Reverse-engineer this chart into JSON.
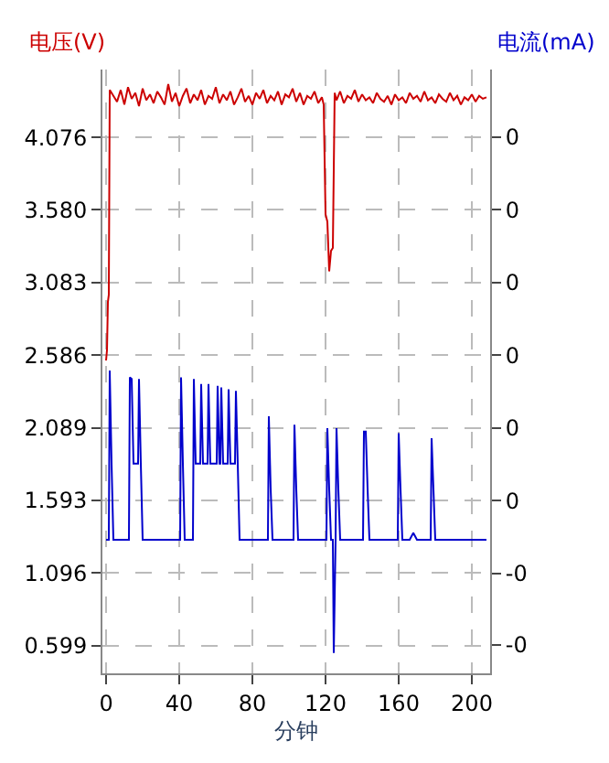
{
  "chart_data": {
    "type": "line",
    "xlabel": "分钟",
    "ylabel": "电压(V)",
    "y2label": "电流(mA)",
    "xlim": [
      -2,
      210
    ],
    "xticks": [
      0,
      40,
      80,
      120,
      160,
      200
    ],
    "ylim": [
      0.41,
      4.54
    ],
    "yticks": [
      0.599,
      1.096,
      1.593,
      2.089,
      2.586,
      3.083,
      {
        "value": 3.58,
        "label": "3.580"
      },
      4.076
    ],
    "y2lim": [
      -0.158,
      0.556
    ],
    "y2ticks": [
      {
        "value": -0.124,
        "label": "-0"
      },
      {
        "value": -0.04,
        "label": "-0"
      },
      {
        "value": 0.046,
        "label": "0"
      },
      {
        "value": 0.132,
        "label": "0"
      },
      {
        "value": 0.218,
        "label": "0"
      },
      {
        "value": 0.304,
        "label": "0"
      },
      {
        "value": 0.39,
        "label": "0"
      },
      {
        "value": 0.476,
        "label": "0"
      }
    ],
    "grid": true,
    "marker": "none",
    "line_style": "solid",
    "series": [
      {
        "color": "#cc0000",
        "x": [
          0,
          0.5,
          1,
          1.5,
          2,
          4,
          6,
          8,
          10,
          12,
          14,
          16,
          18,
          20,
          22,
          24,
          26,
          28,
          30,
          32,
          34,
          36,
          38,
          40,
          42,
          44,
          46,
          48,
          50,
          52,
          54,
          56,
          58,
          60,
          62,
          64,
          66,
          68,
          70,
          72,
          74,
          76,
          78,
          80,
          82,
          84,
          86,
          88,
          90,
          92,
          94,
          96,
          98,
          100,
          102,
          104,
          106,
          108,
          110,
          112,
          114,
          116,
          118,
          119,
          120,
          121,
          122,
          123,
          124,
          125,
          126,
          128,
          130,
          132,
          134,
          136,
          138,
          140,
          142,
          144,
          146,
          148,
          150,
          152,
          154,
          156,
          158,
          160,
          162,
          164,
          166,
          168,
          170,
          172,
          174,
          176,
          178,
          180,
          182,
          184,
          186,
          188,
          190,
          192,
          194,
          196,
          198,
          200,
          202,
          204,
          206,
          208
        ],
        "values": [
          2.55,
          2.62,
          2.95,
          3.0,
          4.4,
          4.36,
          4.32,
          4.4,
          4.3,
          4.42,
          4.34,
          4.38,
          4.29,
          4.41,
          4.33,
          4.37,
          4.31,
          4.39,
          4.35,
          4.3,
          4.44,
          4.32,
          4.38,
          4.29,
          4.36,
          4.41,
          4.31,
          4.37,
          4.33,
          4.4,
          4.3,
          4.36,
          4.34,
          4.42,
          4.31,
          4.37,
          4.33,
          4.39,
          4.3,
          4.35,
          4.41,
          4.32,
          4.36,
          4.3,
          4.38,
          4.34,
          4.4,
          4.31,
          4.36,
          4.33,
          4.39,
          4.3,
          4.37,
          4.35,
          4.41,
          4.32,
          4.38,
          4.3,
          4.36,
          4.34,
          4.39,
          4.31,
          4.35,
          4.3,
          3.55,
          3.5,
          3.16,
          3.3,
          3.32,
          4.38,
          4.33,
          4.39,
          4.31,
          4.36,
          4.34,
          4.4,
          4.32,
          4.37,
          4.33,
          4.35,
          4.31,
          4.38,
          4.34,
          4.32,
          4.36,
          4.3,
          4.37,
          4.33,
          4.35,
          4.31,
          4.38,
          4.34,
          4.36,
          4.32,
          4.39,
          4.33,
          4.35,
          4.31,
          4.37,
          4.34,
          4.32,
          4.38,
          4.33,
          4.36,
          4.3,
          4.35,
          4.33,
          4.37,
          4.32,
          4.36,
          4.34,
          4.35
        ]
      },
      {
        "color": "#0000cc",
        "axis": "y2",
        "x": [
          0,
          1.5,
          2,
          3,
          4,
          12.5,
          13,
          14,
          15,
          17.5,
          18,
          19,
          20,
          40.5,
          41,
          42,
          43,
          47.5,
          48,
          49,
          51.5,
          52,
          53,
          55.5,
          56,
          57,
          60.5,
          61,
          62,
          62.5,
          63,
          64,
          66.5,
          67,
          68,
          70.5,
          71,
          72,
          73,
          88.5,
          89,
          90,
          91,
          102.5,
          103,
          104,
          105,
          120.5,
          121,
          122,
          123,
          124,
          124.5,
          125.5,
          126,
          127,
          128,
          140.5,
          141,
          142,
          143,
          144,
          159.5,
          160,
          161,
          162,
          166,
          168,
          170,
          177.5,
          178,
          179,
          180,
          208
        ],
        "values": [
          0,
          0,
          0.2,
          0.09,
          0,
          0,
          0.192,
          0.19,
          0.09,
          0.09,
          0.19,
          0.09,
          0,
          0,
          0.192,
          0.09,
          0,
          0,
          0.19,
          0.09,
          0.09,
          0.184,
          0.09,
          0.09,
          0.184,
          0.09,
          0.09,
          0.182,
          0.09,
          0.09,
          0.18,
          0.09,
          0.09,
          0.178,
          0.09,
          0.09,
          0.176,
          0.09,
          0,
          0,
          0.146,
          0.06,
          0,
          0,
          0.136,
          0.06,
          0,
          0,
          0.132,
          0.06,
          0,
          0,
          -0.134,
          0,
          0.132,
          0.06,
          0,
          0,
          0.128,
          0.128,
          0.06,
          0,
          0,
          0.126,
          0.06,
          0,
          0,
          0.008,
          0,
          0,
          0.12,
          0.06,
          0,
          0
        ]
      }
    ]
  }
}
